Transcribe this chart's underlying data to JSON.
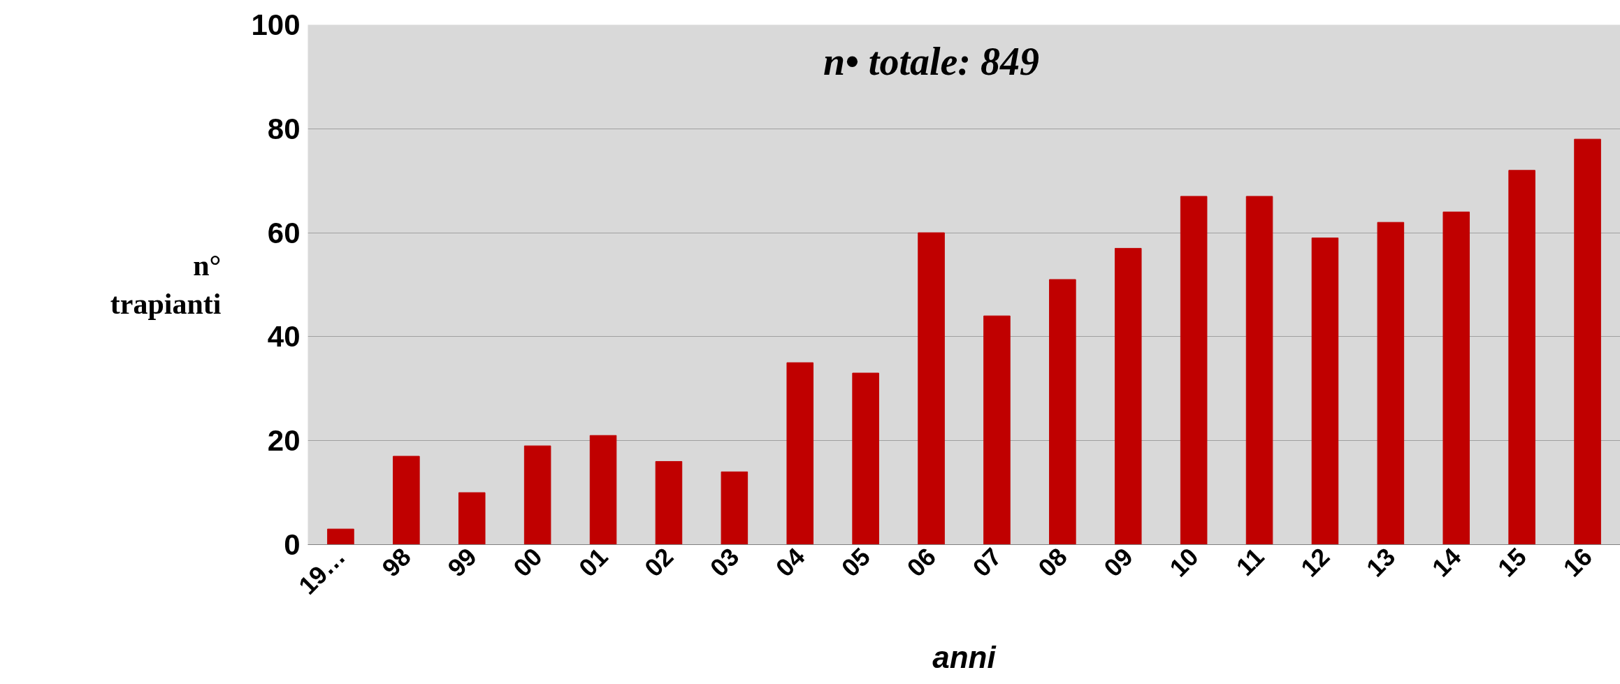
{
  "chart_data": {
    "type": "bar",
    "categories": [
      "19…",
      "98",
      "99",
      "00",
      "01",
      "02",
      "03",
      "04",
      "05",
      "06",
      "07",
      "08",
      "09",
      "10",
      "11",
      "12",
      "13",
      "14",
      "15",
      "16"
    ],
    "values": [
      3,
      17,
      10,
      19,
      21,
      16,
      14,
      35,
      33,
      60,
      44,
      51,
      57,
      67,
      67,
      59,
      62,
      64,
      72,
      78
    ],
    "color": "#c00000",
    "xlabel": "anni",
    "ylabel": "n°\ntrapianti",
    "annotations": [
      "n• totale: 849"
    ],
    "ylim": [
      0,
      100
    ],
    "yticks": [
      0,
      20,
      40,
      60,
      80,
      100
    ],
    "grid": "y"
  }
}
